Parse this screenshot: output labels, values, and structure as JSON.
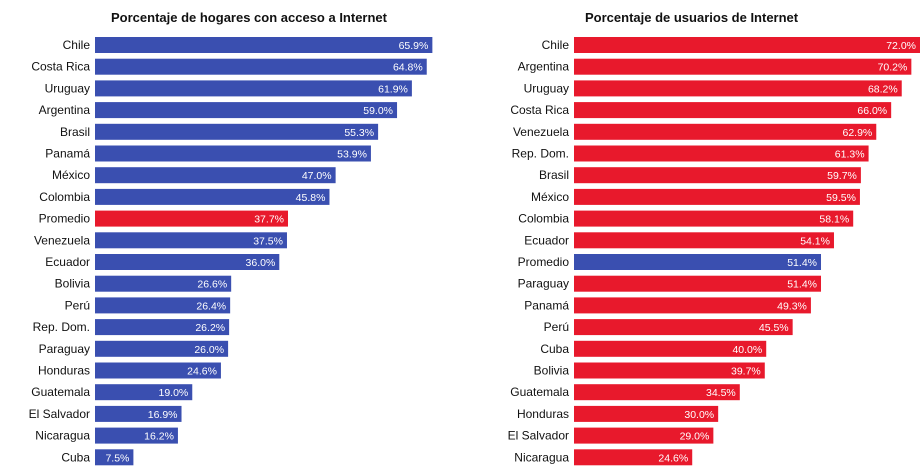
{
  "chart_data": [
    {
      "type": "bar",
      "orientation": "horizontal",
      "title": "Porcentaje de hogares con acceso a Internet",
      "unit": "%",
      "categories": [
        "Chile",
        "Costa Rica",
        "Uruguay",
        "Argentina",
        "Brasil",
        "Panamá",
        "México",
        "Colombia",
        "Promedio",
        "Venezuela",
        "Ecuador",
        "Bolivia",
        "Perú",
        "Rep. Dom.",
        "Paraguay",
        "Honduras",
        "Guatemala",
        "El Salvador",
        "Nicaragua",
        "Cuba"
      ],
      "values": [
        65.9,
        64.8,
        61.9,
        59.0,
        55.3,
        53.9,
        47.0,
        45.8,
        37.7,
        37.5,
        36.0,
        26.6,
        26.4,
        26.2,
        26.0,
        24.6,
        19.0,
        16.9,
        16.2,
        7.5
      ],
      "value_labels": [
        "65.9%",
        "64.8%",
        "61.9%",
        "59.0%",
        "55.3%",
        "53.9%",
        "47.0%",
        "45.8%",
        "37.7%",
        "37.5%",
        "36.0%",
        "26.6%",
        "26.4%",
        "26.2%",
        "26.0%",
        "24.6%",
        "19.0%",
        "16.9%",
        "16.2%",
        "7.5%"
      ],
      "highlight": "Promedio",
      "bar_color": "#3a4fb0",
      "highlight_color": "#e8192c",
      "xlim": [
        0,
        67
      ]
    },
    {
      "type": "bar",
      "orientation": "horizontal",
      "title": "Porcentaje de usuarios de Internet",
      "unit": "%",
      "categories": [
        "Chile",
        "Argentina",
        "Uruguay",
        "Costa Rica",
        "Venezuela",
        "Rep. Dom.",
        "Brasil",
        "México",
        "Colombia",
        "Ecuador",
        "Promedio",
        "Paraguay",
        "Panamá",
        "Perú",
        "Cuba",
        "Bolivia",
        "Guatemala",
        "Honduras",
        "El Salvador",
        "Nicaragua"
      ],
      "values": [
        72.0,
        70.2,
        68.2,
        66.0,
        62.9,
        61.3,
        59.7,
        59.5,
        58.1,
        54.1,
        51.4,
        51.4,
        49.3,
        45.5,
        40.0,
        39.7,
        34.5,
        30.0,
        29.0,
        24.6
      ],
      "value_labels": [
        "72.0%",
        "70.2%",
        "68.2%",
        "66.0%",
        "62.9%",
        "61.3%",
        "59.7%",
        "59.5%",
        "58.1%",
        "54.1%",
        "51.4%",
        "51.4%",
        "49.3%",
        "45.5%",
        "40.0%",
        "39.7%",
        "34.5%",
        "30.0%",
        "29.0%",
        "24.6%"
      ],
      "highlight": "Promedio",
      "bar_color": "#e8192c",
      "highlight_color": "#3a4fb0",
      "xlim": [
        0,
        72
      ]
    }
  ]
}
